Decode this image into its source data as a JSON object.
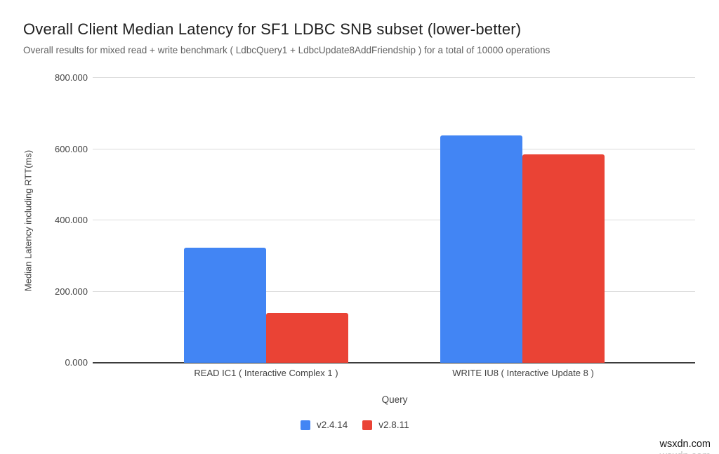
{
  "title": "Overall Client Median Latency for SF1 LDBC SNB subset (lower-better)",
  "subtitle": "Overall results for mixed read + write benchmark ( LdbcQuery1 + LdbcUpdate8AddFriendship ) for a total of 10000 operations",
  "watermark": "wsxdn.com",
  "chart_data": {
    "type": "bar",
    "title": "Overall Client Median Latency for SF1 LDBC SNB subset (lower-better)",
    "subtitle": "Overall results for mixed read + write benchmark ( LdbcQuery1 + LdbcUpdate8AddFriendship ) for a total of 10000 operations",
    "categories": [
      "READ IC1 ( Interactive Complex 1 )",
      "WRITE IU8 ( Interactive Update 8 )"
    ],
    "series": [
      {
        "name": "v2.4.14",
        "color": "#4285f4",
        "values": [
          323,
          638
        ]
      },
      {
        "name": "v2.8.11",
        "color": "#ea4335",
        "values": [
          140,
          585
        ]
      }
    ],
    "xlabel": "Query",
    "ylabel": "Median Latency including RTT(ms)",
    "ylim": [
      0,
      800
    ],
    "yticks": [
      {
        "value": 0,
        "label": "0.000"
      },
      {
        "value": 200,
        "label": "200.000"
      },
      {
        "value": 400,
        "label": "400.000"
      },
      {
        "value": 600,
        "label": "600.000"
      },
      {
        "value": 800,
        "label": "800.000"
      }
    ],
    "grid": true,
    "legend_position": "bottom"
  }
}
